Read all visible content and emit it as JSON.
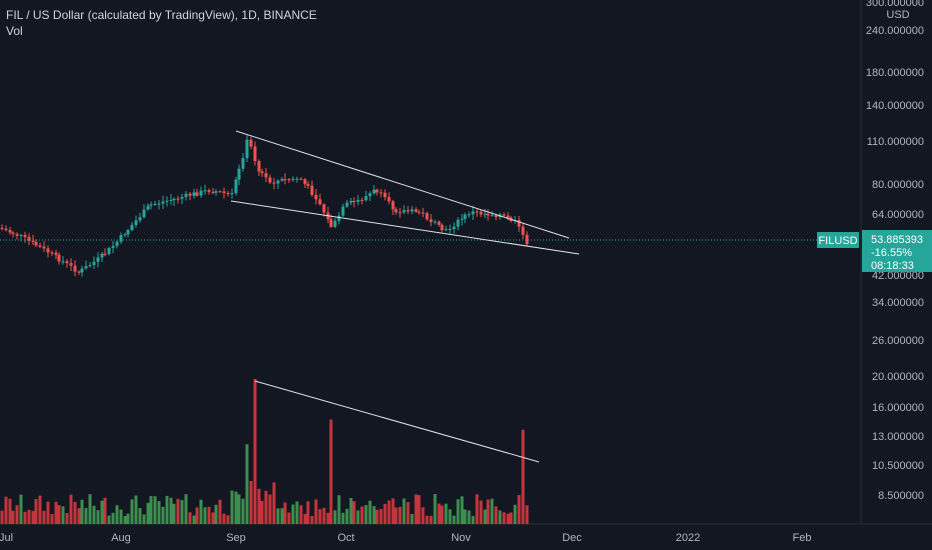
{
  "header": {
    "title": "FIL / US Dollar (calculated by TradingView), 1D, BINANCE",
    "volume_label": "Vol"
  },
  "price_scale": {
    "currency": "USD",
    "ticks": [
      "300.000000",
      "240.000000",
      "180.000000",
      "140.000000",
      "110.000000",
      "80.000000",
      "64.000000",
      "42.000000",
      "34.000000",
      "26.000000",
      "20.000000",
      "16.000000",
      "13.000000",
      "10.500000",
      "8.500000"
    ]
  },
  "last_price": {
    "symbol": "FILUSD",
    "price": "53.885393",
    "change": "-16.55%",
    "countdown": "08:18:33"
  },
  "colors": {
    "background": "#131722",
    "up": "#26a69a",
    "down": "#ef5350",
    "volume_up": "#3e8e4f",
    "volume_down": "#c6353b",
    "trendline": "#e0e3eb",
    "axis_text": "#b2b5be"
  },
  "chart_data": {
    "type": "candlestick",
    "scale": "log",
    "x_ticks": [
      "Jul",
      "Aug",
      "Sep",
      "Oct",
      "Nov",
      "Dec",
      "2022",
      "Feb"
    ],
    "y_range": [
      7.5,
      300
    ],
    "price_path": {
      "dates": [
        "Jul 1",
        "Jul 10",
        "Jul 20",
        "Aug 1",
        "Aug 15",
        "Sep 1",
        "Sep 7",
        "Sep 20",
        "Oct 1",
        "Oct 10",
        "Oct 20",
        "Nov 1",
        "Nov 10",
        "Nov 16",
        "Nov 19"
      ],
      "close": [
        58,
        55,
        42,
        53,
        72,
        76,
        105,
        83,
        55,
        75,
        64,
        60,
        65,
        64,
        53.9
      ]
    },
    "volume_relative": {
      "dates": [
        "Jul 1",
        "Aug 1",
        "Sep 1",
        "Sep 7",
        "Sep 20",
        "Oct 1",
        "Oct 10",
        "Nov 1",
        "Nov 10",
        "Nov 19"
      ],
      "values": [
        0.1,
        0.2,
        0.3,
        1.0,
        0.35,
        0.6,
        0.4,
        0.2,
        0.55,
        0.65
      ]
    },
    "trendlines": [
      {
        "from": {
          "date": "Sep 7",
          "price": 120
        },
        "to": {
          "date": "Dec 1",
          "price": 51
        }
      },
      {
        "from": {
          "date": "Sep 1",
          "price": 73
        },
        "to": {
          "date": "Dec 1",
          "price": 46
        }
      },
      {
        "from": {
          "date": "Sep 7",
          "price": 19.5
        },
        "to": {
          "date": "Nov 25",
          "price": 11
        }
      }
    ]
  }
}
